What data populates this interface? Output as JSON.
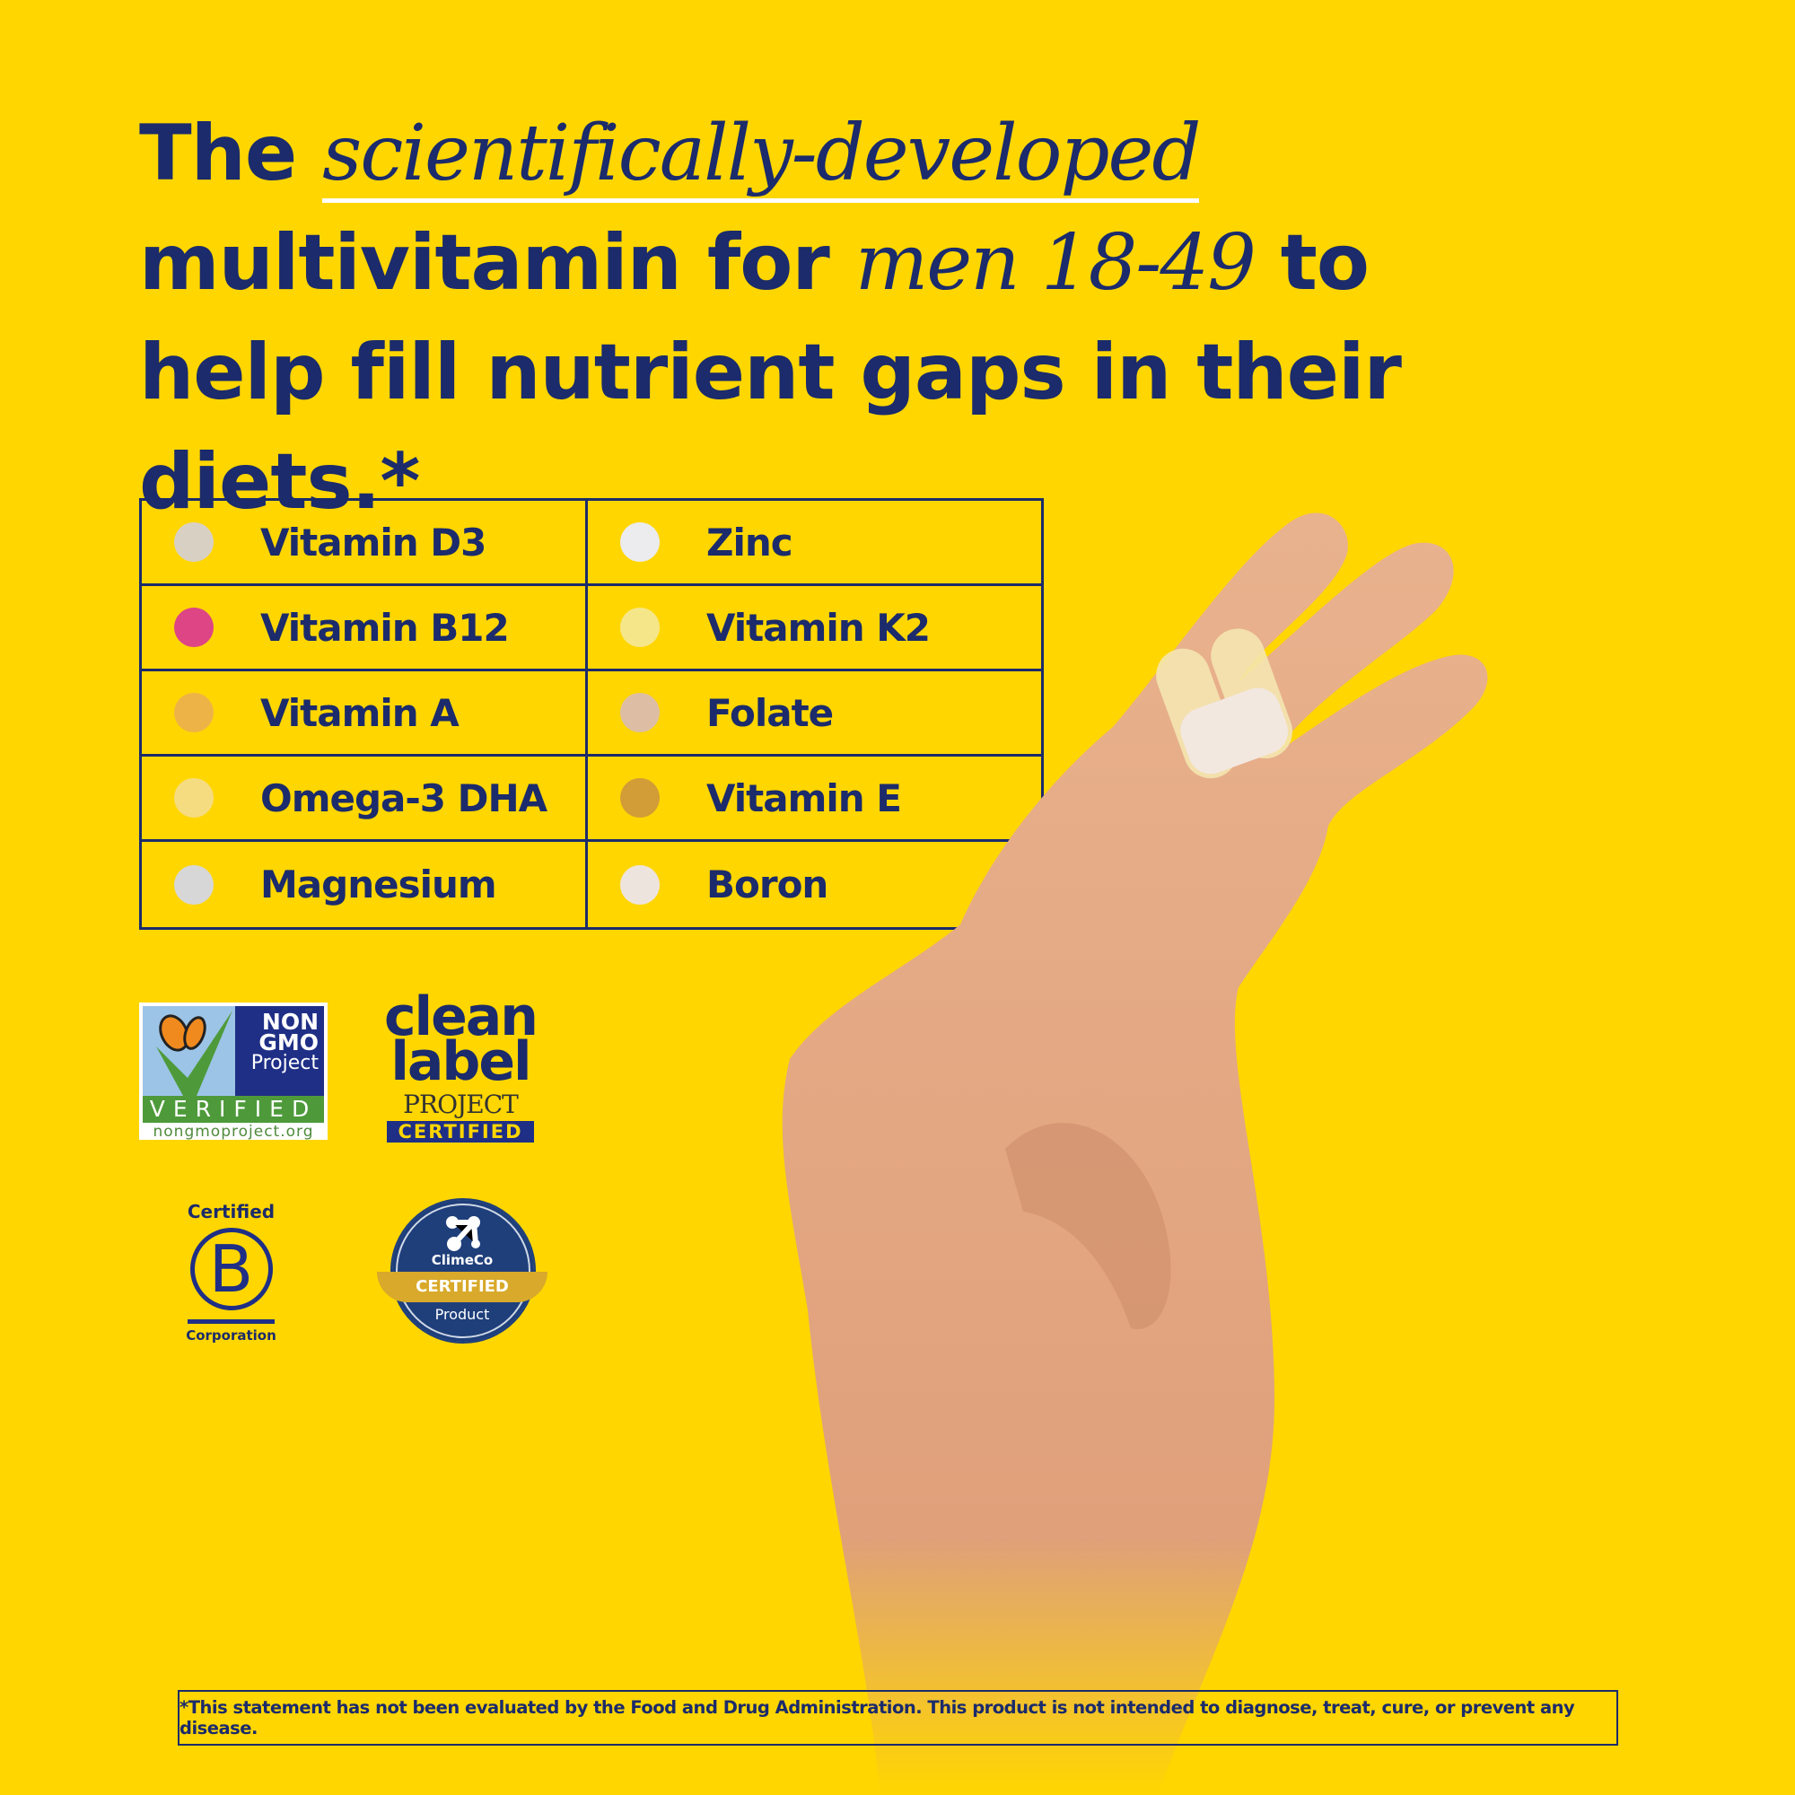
{
  "headline": {
    "part1": "The ",
    "italic1": "scientifically-developed",
    "part2": " multivitamin for ",
    "italic2": "men 18-49",
    "part3": " to help fill nutrient gaps in their diets.*"
  },
  "nutrients": [
    {
      "name": "Vitamin D3",
      "color": "#D9D0C4"
    },
    {
      "name": "Zinc",
      "color": "#ECEBEE"
    },
    {
      "name": "Vitamin B12",
      "color": "#DD4585"
    },
    {
      "name": "Vitamin K2",
      "color": "#F6E68A"
    },
    {
      "name": "Vitamin A",
      "color": "#EEB347"
    },
    {
      "name": "Folate",
      "color": "#DDBEA4"
    },
    {
      "name": "Omega-3 DHA",
      "color": "#F5DC80"
    },
    {
      "name": "Vitamin E",
      "color": "#D29C37"
    },
    {
      "name": "Magnesium",
      "color": "#D7D7D7"
    },
    {
      "name": "Boron",
      "color": "#EEE4DE"
    }
  ],
  "badges": {
    "nongmo": {
      "line1": "NON",
      "line2": "GMO",
      "line3": "Project",
      "verified": "VERIFIED",
      "url": "nongmoproject.org"
    },
    "cleanlabel": {
      "line1": "clean",
      "line2": "label",
      "project": "PROJECT",
      "certified": "CERTIFIED"
    },
    "bcorp": {
      "top": "Certified",
      "letter": "B",
      "bottom": "Corporation"
    },
    "climeco": {
      "name": "ClimeCo",
      "certified": "CERTIFIED",
      "product": "Product"
    }
  },
  "disclaimer": "*This statement has not been evaluated by the Food and Drug Administration. This product is not intended to diagnose, treat, cure, or prevent any disease.",
  "colors": {
    "background": "#FFD600",
    "text": "#1B2B6B"
  }
}
